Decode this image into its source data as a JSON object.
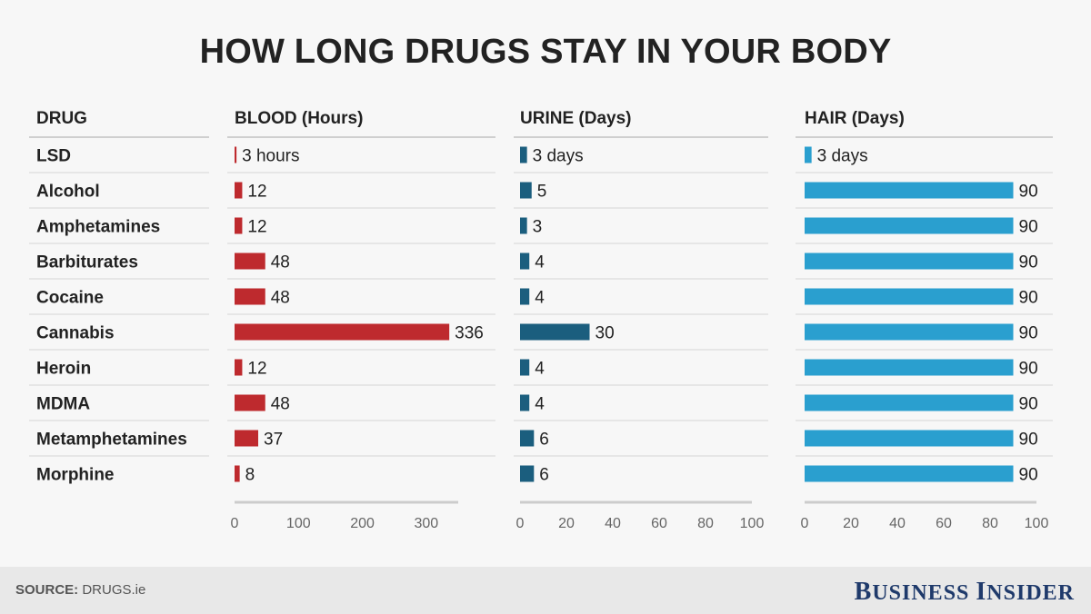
{
  "title": "HOW LONG DRUGS STAY IN YOUR BODY",
  "drug_header": "DRUG",
  "footer": {
    "source_label": "SOURCE:",
    "source_value": "DRUGS.ie",
    "brand": "Business Insider"
  },
  "colors": {
    "blood": "#be2a2e",
    "urine": "#1b5e7e",
    "hair": "#2a9fcf"
  },
  "chart_data": {
    "type": "bar",
    "orientation": "horizontal",
    "categories": [
      "LSD",
      "Alcohol",
      "Amphetamines",
      "Barbiturates",
      "Cocaine",
      "Cannabis",
      "Heroin",
      "MDMA",
      "Metamphetamines",
      "Morphine"
    ],
    "panels": [
      {
        "name": "BLOOD (Hours)",
        "values": [
          3,
          12,
          12,
          48,
          48,
          336,
          12,
          48,
          37,
          8
        ],
        "labels": [
          "3 hours",
          "12",
          "12",
          "48",
          "48",
          "336",
          "12",
          "48",
          "37",
          "8"
        ],
        "xlim": [
          0,
          350
        ],
        "ticks": [
          0,
          100,
          200,
          300
        ]
      },
      {
        "name": "URINE (Days)",
        "values": [
          3,
          5,
          3,
          4,
          4,
          30,
          4,
          4,
          6,
          6
        ],
        "labels": [
          "3 days",
          "5",
          "3",
          "4",
          "4",
          "30",
          "4",
          "4",
          "6",
          "6"
        ],
        "xlim": [
          0,
          100
        ],
        "ticks": [
          0,
          20,
          40,
          60,
          80,
          100
        ]
      },
      {
        "name": "HAIR (Days)",
        "values": [
          3,
          90,
          90,
          90,
          90,
          90,
          90,
          90,
          90,
          90
        ],
        "labels": [
          "3 days",
          "90",
          "90",
          "90",
          "90",
          "90",
          "90",
          "90",
          "90",
          "90"
        ],
        "xlim": [
          0,
          100
        ],
        "ticks": [
          0,
          20,
          40,
          60,
          80,
          100
        ]
      }
    ]
  }
}
